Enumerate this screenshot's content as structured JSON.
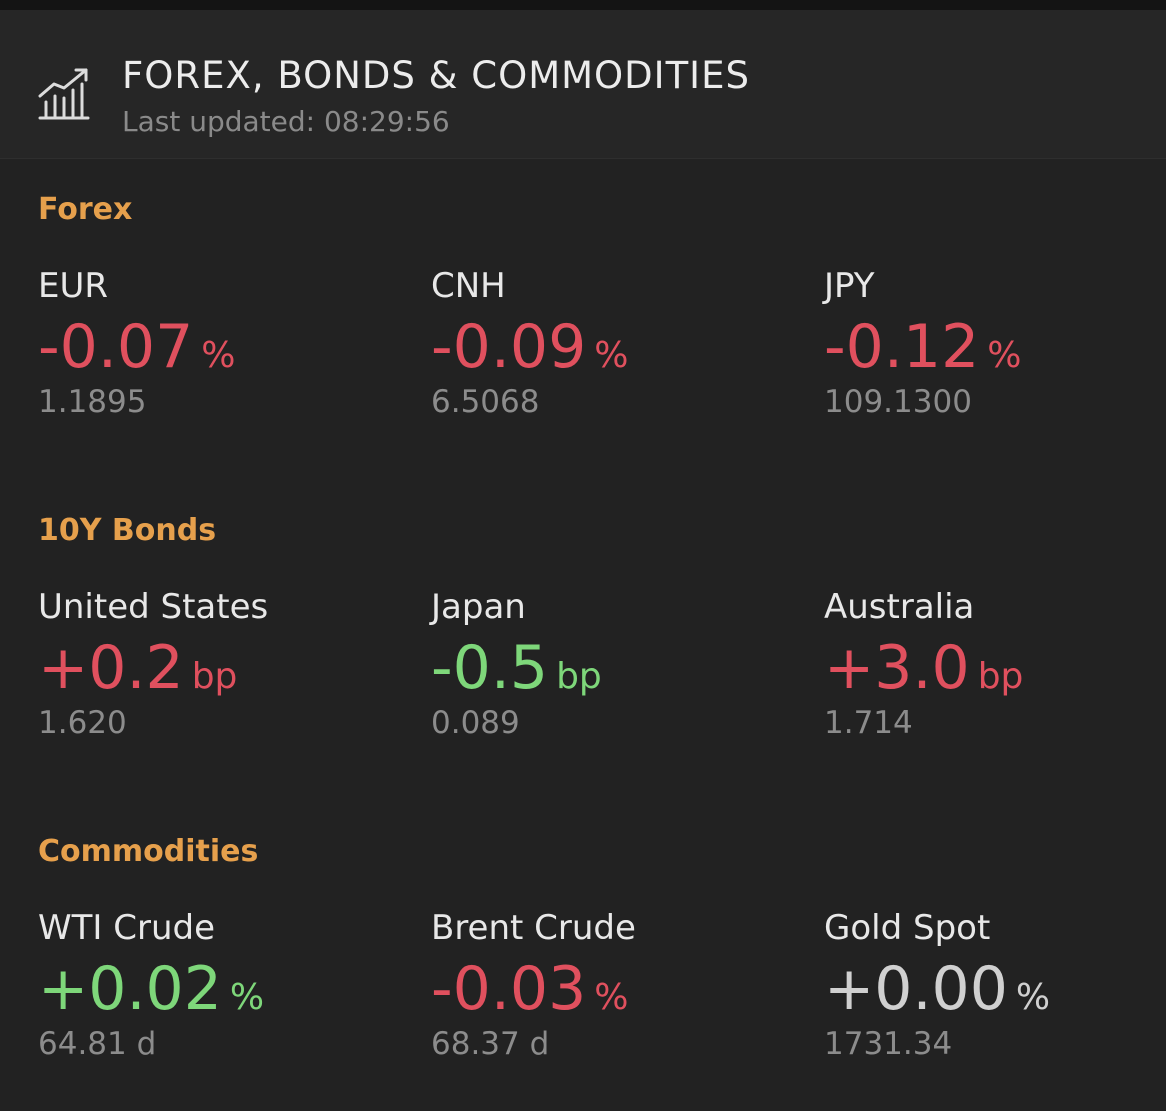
{
  "header": {
    "title": "FOREX, BONDS & COMMODITIES",
    "updated": "Last updated: 08:29:56",
    "icon": "chart-growth-icon"
  },
  "colors": {
    "section_title": "#e6a04c",
    "negative": "#e0505e",
    "positive": "#7ed77a",
    "neutral": "#d0d0d0"
  },
  "sections": [
    {
      "title": "Forex",
      "items": [
        {
          "name": "EUR",
          "change": "-0.07",
          "unit": "%",
          "price": "1.1895",
          "dir": "down"
        },
        {
          "name": "CNH",
          "change": "-0.09",
          "unit": "%",
          "price": "6.5068",
          "dir": "down"
        },
        {
          "name": "JPY",
          "change": "-0.12",
          "unit": "%",
          "price": "109.1300",
          "dir": "down"
        }
      ]
    },
    {
      "title": "10Y Bonds",
      "items": [
        {
          "name": "United States",
          "change": "+0.2",
          "unit": "bp",
          "price": "1.620",
          "dir": "down"
        },
        {
          "name": "Japan",
          "change": "-0.5",
          "unit": "bp",
          "price": "0.089",
          "dir": "up"
        },
        {
          "name": "Australia",
          "change": "+3.0",
          "unit": "bp",
          "price": "1.714",
          "dir": "down"
        }
      ]
    },
    {
      "title": "Commodities",
      "items": [
        {
          "name": "WTI Crude",
          "change": "+0.02",
          "unit": "%",
          "price": "64.81 d",
          "dir": "up"
        },
        {
          "name": "Brent Crude",
          "change": "-0.03",
          "unit": "%",
          "price": "68.37 d",
          "dir": "down"
        },
        {
          "name": "Gold Spot",
          "change": "+0.00",
          "unit": "%",
          "price": "1731.34",
          "dir": "flat"
        }
      ]
    }
  ]
}
